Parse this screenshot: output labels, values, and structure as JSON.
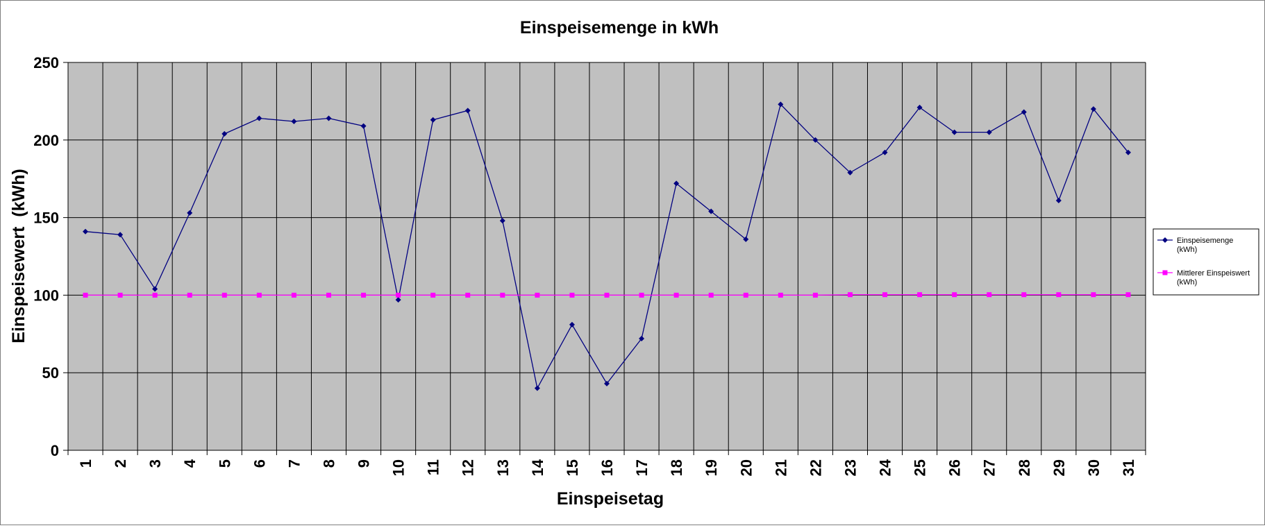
{
  "chart_data": {
    "type": "line",
    "title": "Einspeisemenge in kWh",
    "xlabel": "Einspeisetag",
    "ylabel": "Einspeisewert  (kWh)",
    "ylim": [
      0,
      250
    ],
    "yticks": [
      0,
      50,
      100,
      150,
      200,
      250
    ],
    "grid": true,
    "legend_position": "right",
    "plot_background": "#c0c0c0",
    "categories": [
      "1",
      "2",
      "3",
      "4",
      "5",
      "6",
      "7",
      "8",
      "9",
      "10",
      "11",
      "12",
      "13",
      "14",
      "15",
      "16",
      "17",
      "18",
      "19",
      "20",
      "21",
      "22",
      "23",
      "24",
      "25",
      "26",
      "27",
      "28",
      "29",
      "30",
      "31"
    ],
    "series": [
      {
        "name": "Einspeisemenge\n(kWh)",
        "color": "#000080",
        "marker": "diamond",
        "values": [
          141,
          139,
          104,
          153,
          204,
          214,
          212,
          214,
          209,
          97,
          213,
          219,
          148,
          40,
          81,
          43,
          72,
          172,
          154,
          136,
          223,
          200,
          179,
          192,
          221,
          205,
          205,
          218,
          161,
          220,
          192
        ]
      },
      {
        "name": "Mittlerer Einspeiswert\n(kWh)",
        "color": "#ff00ff",
        "marker": "square",
        "values": [
          100,
          100,
          100,
          100,
          100,
          100,
          100,
          100,
          100,
          100,
          100,
          100,
          100,
          100,
          100,
          100,
          100,
          100,
          100,
          100,
          100,
          100,
          100.3,
          100.3,
          100.3,
          100.3,
          100.3,
          100.3,
          100.3,
          100.3,
          100.3
        ]
      }
    ]
  }
}
